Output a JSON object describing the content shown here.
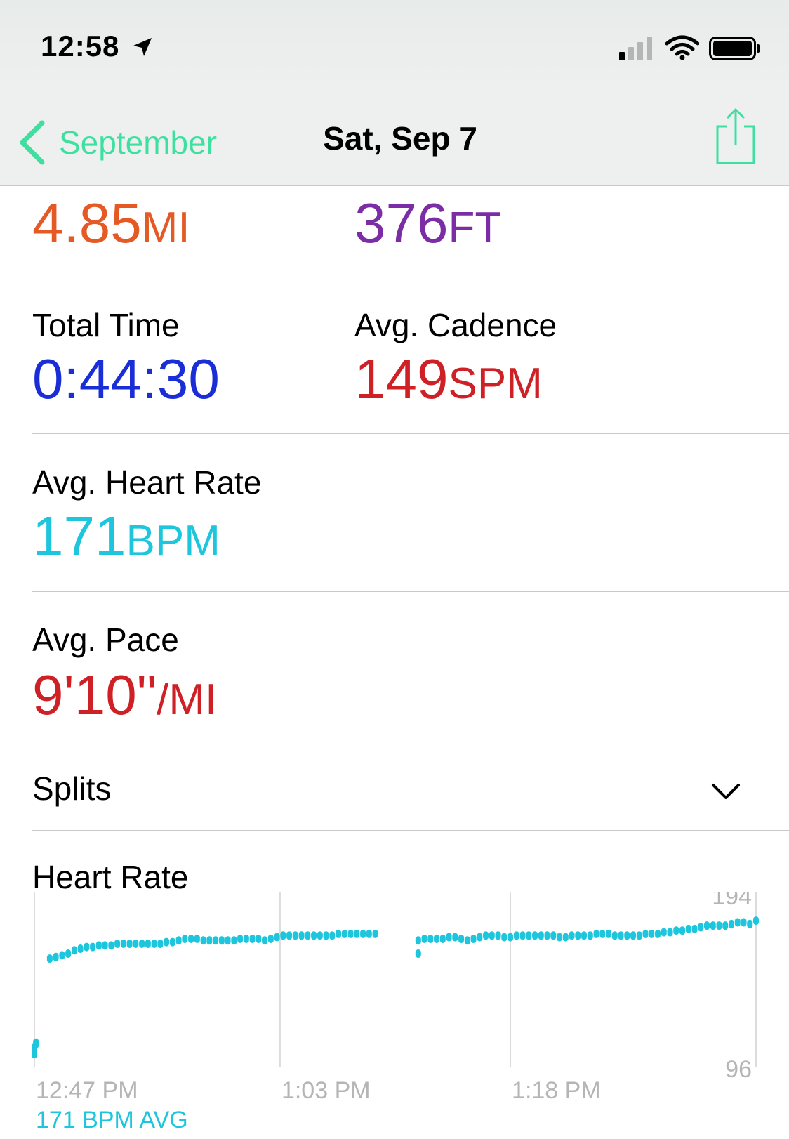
{
  "status_bar": {
    "time": "12:58",
    "icons": [
      "location-arrow-icon",
      "cellular-signal-icon",
      "wifi-icon",
      "battery-icon"
    ]
  },
  "nav": {
    "back_label": "September",
    "title": "Sat, Sep 7",
    "share_icon": "share-icon"
  },
  "summary": {
    "distance": {
      "value": "4.85",
      "unit": "MI"
    },
    "elevation": {
      "value": "376",
      "unit": "FT"
    },
    "total_time": {
      "label": "Total Time",
      "value": "0:44:30"
    },
    "avg_cadence": {
      "label": "Avg. Cadence",
      "value": "149",
      "unit": "SPM"
    },
    "avg_heart_rate": {
      "label": "Avg. Heart Rate",
      "value": "171",
      "unit": "BPM"
    },
    "avg_pace": {
      "label": "Avg. Pace",
      "value": "9'10\"",
      "unit": "/MI"
    }
  },
  "splits": {
    "label": "Splits"
  },
  "heart_rate": {
    "title": "Heart Rate"
  },
  "colors": {
    "accent_green": "#3ee0a0",
    "distance": "#e55a24",
    "elevation": "#7b2da6",
    "time": "#1a2ed8",
    "cadence_pace": "#cf2026",
    "heart": "#1dc6dd"
  },
  "chart_data": {
    "type": "scatter",
    "title": "Heart Rate",
    "x_unit": "minutes since 12:47 PM",
    "x_tick_labels": [
      "12:47 PM",
      "1:03 PM",
      "1:18 PM"
    ],
    "x_ticks": [
      0,
      16,
      31
    ],
    "xlim": [
      0,
      47
    ],
    "y_max_label": "194",
    "y_min_label": "96",
    "ylim": [
      96,
      194
    ],
    "avg_label": "171 BPM AVG",
    "series": [
      {
        "name": "Heart Rate",
        "points": [
          [
            0.0,
            104
          ],
          [
            0.0,
            108
          ],
          [
            0.1,
            110
          ],
          [
            0.1,
            111
          ],
          [
            1.0,
            162
          ],
          [
            1.4,
            163
          ],
          [
            1.8,
            164
          ],
          [
            2.2,
            165
          ],
          [
            2.6,
            167
          ],
          [
            3.0,
            168
          ],
          [
            3.4,
            169
          ],
          [
            3.8,
            169
          ],
          [
            4.2,
            170
          ],
          [
            4.6,
            170
          ],
          [
            5.0,
            170
          ],
          [
            5.4,
            171
          ],
          [
            5.8,
            171
          ],
          [
            6.2,
            171
          ],
          [
            6.6,
            171
          ],
          [
            7.0,
            171
          ],
          [
            7.4,
            171
          ],
          [
            7.8,
            171
          ],
          [
            8.2,
            171
          ],
          [
            8.6,
            172
          ],
          [
            9.0,
            172
          ],
          [
            9.4,
            173
          ],
          [
            9.8,
            174
          ],
          [
            10.2,
            174
          ],
          [
            10.6,
            174
          ],
          [
            11.0,
            173
          ],
          [
            11.4,
            173
          ],
          [
            11.8,
            173
          ],
          [
            12.2,
            173
          ],
          [
            12.6,
            173
          ],
          [
            13.0,
            173
          ],
          [
            13.4,
            174
          ],
          [
            13.8,
            174
          ],
          [
            14.2,
            174
          ],
          [
            14.6,
            174
          ],
          [
            15.0,
            173
          ],
          [
            15.4,
            174
          ],
          [
            15.8,
            175
          ],
          [
            16.2,
            176
          ],
          [
            16.6,
            176
          ],
          [
            17.0,
            176
          ],
          [
            17.4,
            176
          ],
          [
            17.8,
            176
          ],
          [
            18.2,
            176
          ],
          [
            18.6,
            176
          ],
          [
            19.0,
            176
          ],
          [
            19.4,
            176
          ],
          [
            19.8,
            177
          ],
          [
            20.2,
            177
          ],
          [
            20.6,
            177
          ],
          [
            21.0,
            177
          ],
          [
            21.4,
            177
          ],
          [
            21.8,
            177
          ],
          [
            22.2,
            177
          ],
          [
            25.0,
            165
          ],
          [
            25.0,
            173
          ],
          [
            25.4,
            174
          ],
          [
            25.8,
            174
          ],
          [
            26.2,
            174
          ],
          [
            26.6,
            174
          ],
          [
            27.0,
            175
          ],
          [
            27.4,
            175
          ],
          [
            27.8,
            174
          ],
          [
            28.2,
            173
          ],
          [
            28.6,
            174
          ],
          [
            29.0,
            175
          ],
          [
            29.4,
            176
          ],
          [
            29.8,
            176
          ],
          [
            30.2,
            176
          ],
          [
            30.6,
            175
          ],
          [
            31.0,
            175
          ],
          [
            31.4,
            176
          ],
          [
            31.8,
            176
          ],
          [
            32.2,
            176
          ],
          [
            32.6,
            176
          ],
          [
            33.0,
            176
          ],
          [
            33.4,
            176
          ],
          [
            33.8,
            176
          ],
          [
            34.2,
            175
          ],
          [
            34.6,
            175
          ],
          [
            35.0,
            176
          ],
          [
            35.4,
            176
          ],
          [
            35.8,
            176
          ],
          [
            36.2,
            176
          ],
          [
            36.6,
            177
          ],
          [
            37.0,
            177
          ],
          [
            37.4,
            177
          ],
          [
            37.8,
            176
          ],
          [
            38.2,
            176
          ],
          [
            38.6,
            176
          ],
          [
            39.0,
            176
          ],
          [
            39.4,
            176
          ],
          [
            39.8,
            177
          ],
          [
            40.2,
            177
          ],
          [
            40.6,
            177
          ],
          [
            41.0,
            178
          ],
          [
            41.4,
            178
          ],
          [
            41.8,
            179
          ],
          [
            42.2,
            179
          ],
          [
            42.6,
            180
          ],
          [
            43.0,
            180
          ],
          [
            43.4,
            181
          ],
          [
            43.8,
            182
          ],
          [
            44.2,
            182
          ],
          [
            44.6,
            182
          ],
          [
            45.0,
            182
          ],
          [
            45.4,
            183
          ],
          [
            45.8,
            184
          ],
          [
            46.2,
            184
          ],
          [
            46.6,
            183
          ],
          [
            47.0,
            185
          ]
        ]
      }
    ]
  }
}
